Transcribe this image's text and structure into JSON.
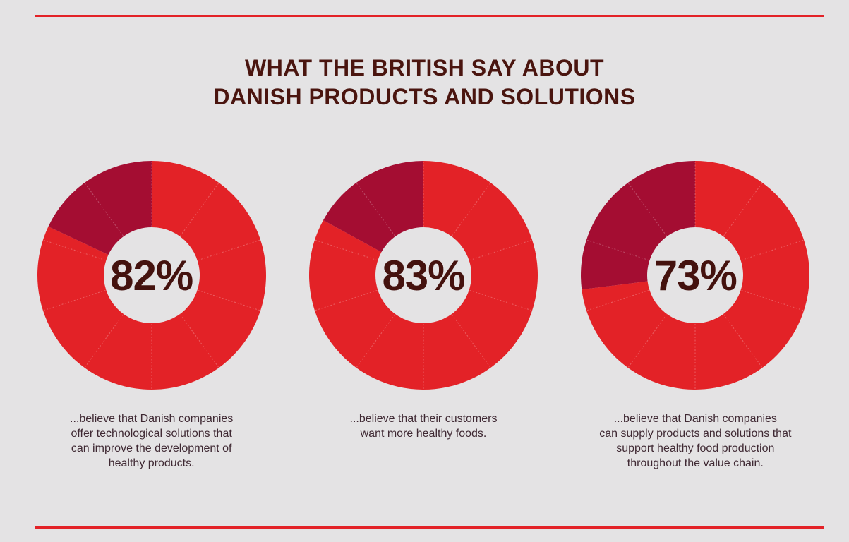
{
  "page": {
    "background_color": "#e4e3e4",
    "rule_color": "#e32227"
  },
  "title": {
    "lines": [
      "WHAT THE BRITISH SAY ABOUT",
      "DANISH PRODUCTS AND SOLUTIONS"
    ],
    "color": "#4a150f"
  },
  "chart_data": [
    {
      "type": "pie",
      "variant": "donut",
      "percent": 82,
      "center_label": "82%",
      "series": [
        {
          "name": "value",
          "value": 82
        },
        {
          "name": "remainder",
          "value": 18
        }
      ],
      "colors": {
        "value": "#e32227",
        "remainder": "#a40d32"
      },
      "start_angle_deg": 0,
      "slice_guide_step_pct": 10,
      "caption_lines": [
        "...believe that Danish companies",
        "offer technological solutions that",
        "can improve the development of",
        "healthy products."
      ]
    },
    {
      "type": "pie",
      "variant": "donut",
      "percent": 83,
      "center_label": "83%",
      "series": [
        {
          "name": "value",
          "value": 83
        },
        {
          "name": "remainder",
          "value": 17
        }
      ],
      "colors": {
        "value": "#e32227",
        "remainder": "#a40d32"
      },
      "start_angle_deg": 0,
      "slice_guide_step_pct": 10,
      "caption_lines": [
        "...believe that their customers",
        "want more healthy foods."
      ]
    },
    {
      "type": "pie",
      "variant": "donut",
      "percent": 73,
      "center_label": "73%",
      "series": [
        {
          "name": "value",
          "value": 73
        },
        {
          "name": "remainder",
          "value": 27
        }
      ],
      "colors": {
        "value": "#e32227",
        "remainder": "#a40d32"
      },
      "start_angle_deg": 0,
      "slice_guide_step_pct": 10,
      "caption_lines": [
        "...believe that Danish companies",
        "can supply products and solutions that",
        "support healthy food production",
        "throughout the value chain."
      ]
    }
  ]
}
